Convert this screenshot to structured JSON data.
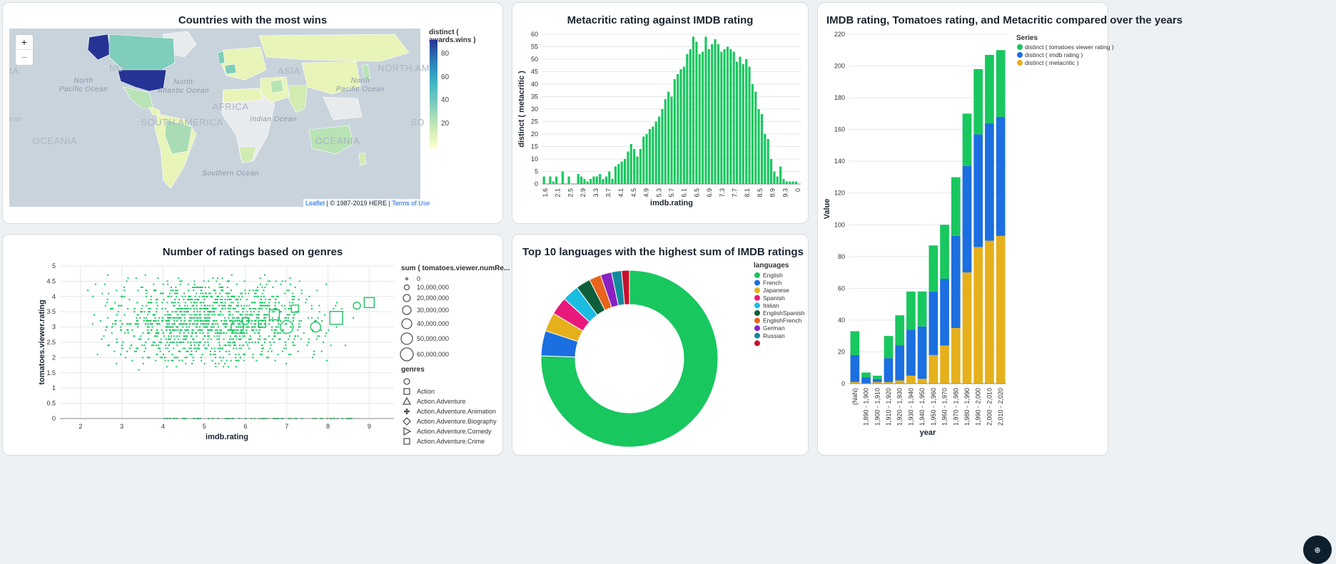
{
  "cards": {
    "map_title": "Countries with the most wins",
    "meta_title": "Metacritic rating against IMDB rating",
    "stack_title": "IMDB rating, Tomatoes rating, and Metacritic compared over the years",
    "scatter_title": "Number of ratings based on genres",
    "donut_title": "Top 10 languages with the highest sum of IMDB ratings"
  },
  "map": {
    "zoom_in": "+",
    "zoom_out": "−",
    "legend_title": "distinct ( awards.wins )",
    "legend_ticks": [
      "80",
      "60",
      "40",
      "20"
    ],
    "attribution_link": "Leaflet",
    "attribution_text": " | © 1987-2019 HERE | ",
    "terms_link": "Terms of Use",
    "labels": {
      "north_pacific_left": "North\nPacific Ocean",
      "north_atlantic": "North\nAtlantic Ocean",
      "north_pacific_right": "North\nPacific Ocean",
      "indian": "Indian Ocean",
      "southern": "Southern Ocean",
      "oceania_left": "OCEANIA",
      "oceania_right": "OCEANIA",
      "south_america": "SOUTH AMERICA",
      "africa": "AFRICA",
      "asia": "ASIA",
      "north_america_left": "NO",
      "north_america_right": "NORTH AM",
      "ia_left": "IA",
      "ean": "ean",
      "so": "SO"
    },
    "colors": {
      "water": "#c9d3dc",
      "land": "#e8ebed",
      "low": "#e8f4b8",
      "mid": "#7fcdbb",
      "high": "#253494"
    }
  },
  "chart_data": [
    {
      "type": "bar",
      "title": "Metacritic rating against IMDB rating",
      "xlabel": "imdb.rating",
      "ylabel": "distinct ( metacritic )",
      "ylim": [
        0,
        60
      ],
      "yticks": [
        0,
        5,
        10,
        15,
        20,
        25,
        30,
        35,
        40,
        45,
        50,
        55,
        60
      ],
      "xticks": [
        "1.6",
        "2.1",
        "2.5",
        "2.9",
        "3.3",
        "3.7",
        "4.1",
        "4.5",
        "4.9",
        "5.3",
        "5.7",
        "6.1",
        "6.5",
        "6.9",
        "7.3",
        "7.7",
        "8.1",
        "8.5",
        "8.9",
        "9.3",
        "0"
      ],
      "values": [
        3,
        0,
        3,
        1,
        3,
        0,
        5,
        0,
        3,
        0,
        0,
        4,
        3,
        2,
        1,
        2,
        3,
        3,
        4,
        2,
        3,
        5,
        2,
        7,
        8,
        9,
        10,
        13,
        16,
        14,
        11,
        14,
        19,
        20,
        22,
        23,
        25,
        27,
        30,
        34,
        37,
        35,
        42,
        44,
        46,
        47,
        52,
        54,
        59,
        57,
        52,
        53,
        59,
        54,
        56,
        58,
        56,
        53,
        54,
        55,
        54,
        53,
        49,
        51,
        48,
        50,
        47,
        40,
        37,
        30,
        28,
        20,
        18,
        10,
        5,
        3,
        7,
        2,
        1,
        1,
        1,
        1,
        0
      ],
      "color": "#19c75f"
    },
    {
      "type": "bar",
      "stacked": true,
      "title": "IMDB rating, Tomatoes rating, and Metacritic compared over the years",
      "xlabel": "year",
      "ylabel": "Value",
      "ylim": [
        0,
        220
      ],
      "yticks": [
        0,
        20,
        40,
        60,
        80,
        100,
        120,
        140,
        160,
        180,
        200,
        220
      ],
      "legend_title": "Series",
      "legend_position": "top-right",
      "categories": [
        "(NaN)",
        "1,890 - 1,900",
        "1,900 - 1,910",
        "1,910 - 1,920",
        "1,920 - 1,930",
        "1,930 - 1,940",
        "1,940 - 1,950",
        "1,950 - 1,960",
        "1,960 - 1,970",
        "1,970 - 1,980",
        "1,980 - 1,990",
        "1,990 - 2,000",
        "2,000 - 2,010",
        "2,010 - 2,020"
      ],
      "series": [
        {
          "name": "distinct ( metacritic )",
          "color": "#e6b01c",
          "values": [
            1,
            0,
            1,
            1,
            2,
            5,
            3,
            18,
            24,
            35,
            70,
            86,
            90,
            93
          ]
        },
        {
          "name": "distinct ( imdb rating )",
          "color": "#1b6fe0",
          "values": [
            17,
            4,
            2,
            15,
            22,
            29,
            33,
            40,
            42,
            58,
            67,
            71,
            74,
            75
          ]
        },
        {
          "name": "distinct ( tomatoes viewer rating )",
          "color": "#19c75f",
          "values": [
            15,
            3,
            2,
            14,
            19,
            24,
            22,
            29,
            34,
            37,
            33,
            41,
            43,
            42
          ]
        }
      ],
      "legend_order": [
        "distinct ( tomatoes viewer rating )",
        "distinct ( imdb rating )",
        "distinct ( metacritic )"
      ]
    },
    {
      "type": "scatter",
      "title": "Number of ratings based on genres",
      "xlabel": "imdb.rating",
      "ylabel": "tomatoes.viewer.rating",
      "xlim": [
        1.5,
        9.6
      ],
      "ylim": [
        0,
        5
      ],
      "xticks": [
        "2",
        "3",
        "4",
        "5",
        "6",
        "7",
        "8",
        "9"
      ],
      "yticks": [
        "0",
        "0.5",
        "1",
        "1.5",
        "2",
        "2.5",
        "3",
        "3.5",
        "4",
        "4.5",
        "5"
      ],
      "color": "#19c75f",
      "size_legend_title": "sum ( tomatoes.viewer.numRe...",
      "size_legend": [
        "0",
        "10,000,000",
        "20,000,000",
        "30,000,000",
        "40,000,000",
        "50,000,000",
        "60,000,000"
      ],
      "shape_legend_title": "genres",
      "shape_legend": [
        "",
        "Action",
        "Action.Adventure",
        "Action.Adventure.Animation",
        "Action.Adventure.Biography",
        "Action.Adventure.Comedy",
        "Action.Adventure.Crime"
      ]
    },
    {
      "type": "pie",
      "donut": true,
      "title": "Top 10 languages with the highest sum of IMDB ratings",
      "legend_title": "languages",
      "legend_position": "right",
      "categories": [
        "English",
        "French",
        "Japanese",
        "Spanish",
        "Italian",
        "EnglishSpanish",
        "EnglishFrench",
        "German",
        "Russian",
        ""
      ],
      "values": [
        74.0,
        4.5,
        3.4,
        3.2,
        3.0,
        2.6,
        2.1,
        2.0,
        1.8,
        1.4
      ],
      "colors": [
        "#19c75f",
        "#1b6fe0",
        "#e6b01c",
        "#e8197a",
        "#1bbce0",
        "#0f5e3b",
        "#e8641a",
        "#8a21c2",
        "#128a9e",
        "#c8102e"
      ]
    }
  ],
  "fab": {
    "label": "⊕"
  }
}
